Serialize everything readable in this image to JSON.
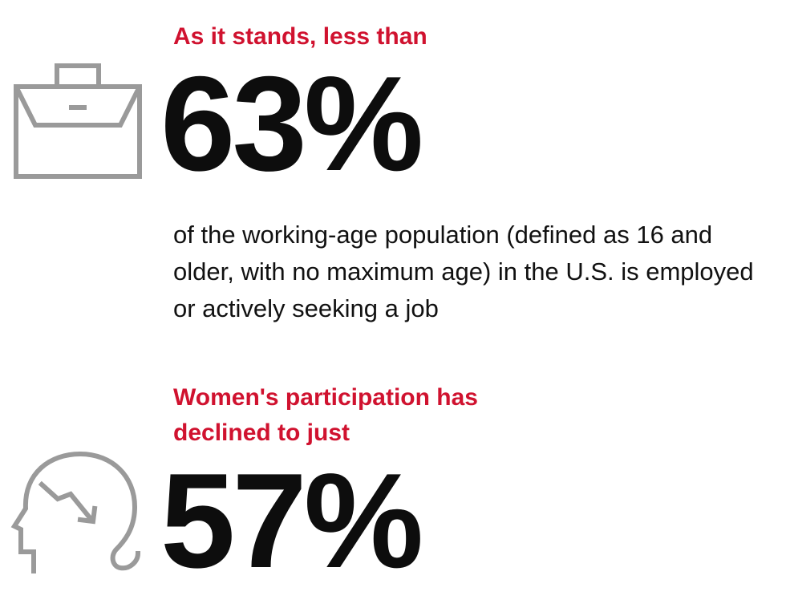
{
  "stat1": {
    "lead": "As it stands, less than",
    "value": "63%",
    "description": "of the working-age population (defined as 16 and older, with no maximum age) in the U.S. is employed or actively seeking a job",
    "icon": "briefcase-icon"
  },
  "stat2": {
    "lead": "Women's participation has declined to just",
    "value": "57%",
    "icon": "head-decline-icon"
  },
  "colors": {
    "accent": "#d0122f",
    "text": "#0d0d0d",
    "icon": "#9a9a9a"
  }
}
